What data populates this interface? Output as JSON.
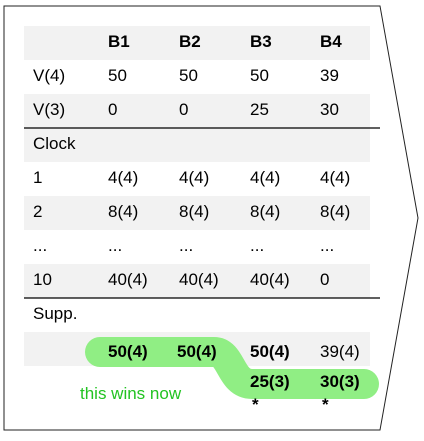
{
  "table": {
    "header": [
      "",
      "B1",
      "B2",
      "B3",
      "B4"
    ],
    "rows": [
      [
        "V(4)",
        "50",
        "50",
        "50",
        "39"
      ],
      [
        "V(3)",
        "0",
        "0",
        "25",
        "30"
      ],
      [
        "Clock",
        "",
        "",
        "",
        ""
      ],
      [
        "1",
        "4(4)",
        "4(4)",
        "4(4)",
        "4(4)"
      ],
      [
        "2",
        "8(4)",
        "8(4)",
        "8(4)",
        "8(4)"
      ],
      [
        "...",
        "...",
        "...",
        "...",
        "..."
      ],
      [
        "10",
        "40(4)",
        "40(4)",
        "40(4)",
        "0"
      ],
      [
        "Supp.",
        "",
        "",
        "",
        ""
      ]
    ],
    "supp_row1": [
      "50(4)",
      "50(4)",
      "50(4)",
      "39(4)"
    ],
    "supp_row2": [
      "25(3)",
      "30(3)"
    ],
    "star": "*"
  },
  "annotation": {
    "text": "this wins now"
  },
  "colors": {
    "highlight": "#90ee84",
    "annotation": "#22c322",
    "stripe": "#f2f2f2"
  }
}
